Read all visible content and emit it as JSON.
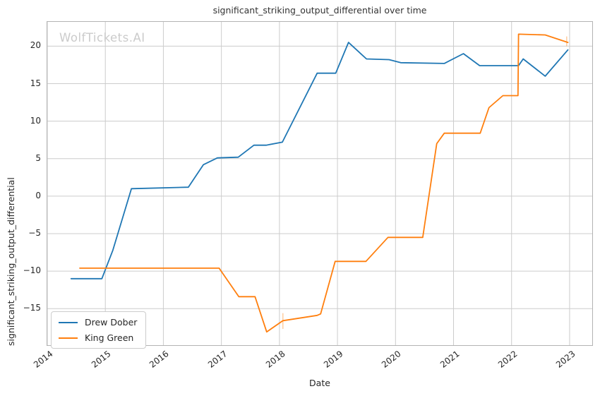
{
  "title": "significant_striking_output_differential over time",
  "watermark": "WolfTickets.AI",
  "axes": {
    "xlabel": "Date",
    "ylabel": "significant_striking_output_differential"
  },
  "legend": {
    "position": "lower left",
    "items": [
      {
        "label": "Drew Dober",
        "color": "#1f77b4"
      },
      {
        "label": "King Green",
        "color": "#ff7f0e"
      }
    ]
  },
  "chart_data": {
    "type": "line",
    "title": "significant_striking_output_differential over time",
    "xlabel": "Date",
    "ylabel": "significant_striking_output_differential",
    "grid": true,
    "legend_position": "lower left",
    "xlim": [
      2014.0,
      2023.39
    ],
    "ylim": [
      -19.87,
      23.24
    ],
    "xticks": [
      2014,
      2015,
      2016,
      2017,
      2018,
      2019,
      2020,
      2021,
      2022,
      2023
    ],
    "yticks": [
      20,
      15,
      10,
      5,
      0,
      -5,
      -10,
      -15
    ],
    "series": [
      {
        "name": "Drew Dober",
        "color": "#1f77b4",
        "points": [
          [
            2014.41,
            -11.0
          ],
          [
            2014.94,
            -11.0
          ],
          [
            2015.13,
            -7.2
          ],
          [
            2015.45,
            1.0
          ],
          [
            2016.43,
            1.2
          ],
          [
            2016.69,
            4.2
          ],
          [
            2016.93,
            5.1
          ],
          [
            2017.29,
            5.2
          ],
          [
            2017.56,
            6.8
          ],
          [
            2017.77,
            6.8
          ],
          [
            2018.05,
            7.2
          ],
          [
            2018.65,
            16.4
          ],
          [
            2018.97,
            16.4
          ],
          [
            2019.19,
            20.5
          ],
          [
            2019.5,
            18.3
          ],
          [
            2019.89,
            18.2
          ],
          [
            2020.09,
            17.8
          ],
          [
            2020.84,
            17.7
          ],
          [
            2021.17,
            19.0
          ],
          [
            2021.45,
            17.4
          ],
          [
            2022.12,
            17.4
          ],
          [
            2022.2,
            18.3
          ],
          [
            2022.58,
            16.0
          ],
          [
            2022.97,
            19.5
          ]
        ]
      },
      {
        "name": "King Green",
        "color": "#ff7f0e",
        "points": [
          [
            2014.56,
            -9.6
          ],
          [
            2016.96,
            -9.6
          ],
          [
            2017.3,
            -13.4
          ],
          [
            2017.58,
            -13.4
          ],
          [
            2017.78,
            -18.1
          ],
          [
            2018.06,
            -16.6
          ],
          [
            2018.65,
            -15.9
          ],
          [
            2018.71,
            -15.7
          ],
          [
            2018.96,
            -8.7
          ],
          [
            2019.49,
            -8.7
          ],
          [
            2019.87,
            -5.5
          ],
          [
            2020.47,
            -5.5
          ],
          [
            2020.71,
            7.0
          ],
          [
            2020.84,
            8.4
          ],
          [
            2021.46,
            8.4
          ],
          [
            2021.61,
            11.8
          ],
          [
            2021.85,
            13.4
          ],
          [
            2022.11,
            13.4
          ],
          [
            2022.12,
            21.6
          ],
          [
            2022.58,
            21.5
          ],
          [
            2022.97,
            20.5
          ]
        ]
      }
    ],
    "error_bars": [
      {
        "series": "King Green",
        "x": 2018.06,
        "y_low": -17.7,
        "y_high": -15.6
      },
      {
        "series": "King Green",
        "x": 2022.95,
        "y_low": 20.0,
        "y_high": 21.3
      }
    ]
  }
}
